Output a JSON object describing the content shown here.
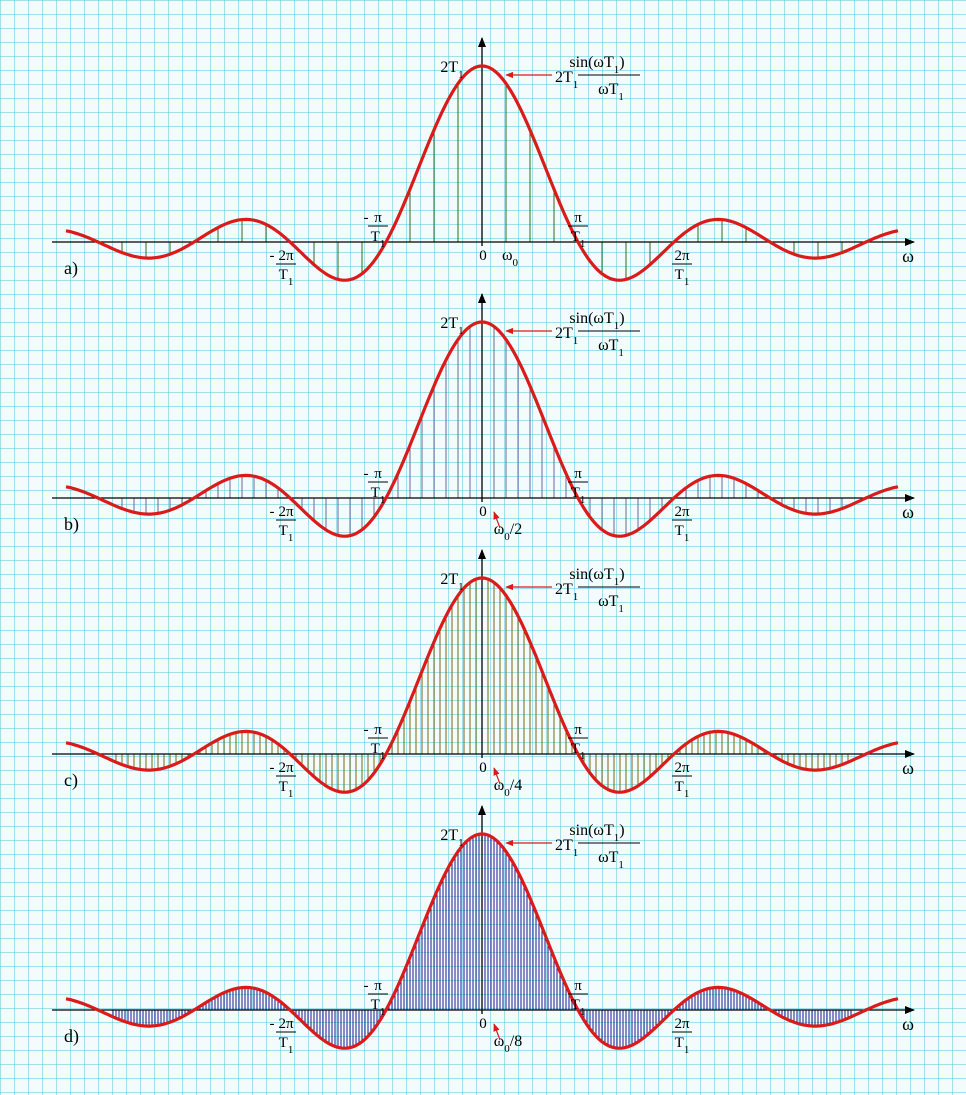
{
  "chart_data": {
    "type": "line",
    "function": "2T1·sin(ωT1)/(ωT1)",
    "axis_label": "ω",
    "x_range_in_units_of_pi_over_T1": [
      -3.85,
      3.85
    ],
    "peak_value": 2,
    "labels": {
      "peak": "2T",
      "curve_a": "2T",
      "curve_num": "sin(ωT",
      "curve_num_close": ")",
      "curve_den": "ωT",
      "sub1": "1",
      "sub0": "0",
      "pi": "π",
      "two_pi": "2π",
      "T": "T",
      "neg": "-",
      "origin": "0",
      "omega": "ω"
    },
    "panels": [
      {
        "id": "a",
        "label": "a)",
        "spacing_label": "",
        "samples_per_pi_over_T1": 4,
        "stem_color": "#2e6b1e"
      },
      {
        "id": "b",
        "label": "b)",
        "spacing_label": "/2",
        "samples_per_pi_over_T1": 8,
        "stem_color": "#6a6a9a"
      },
      {
        "id": "c",
        "label": "c)",
        "spacing_label": "/4",
        "samples_per_pi_over_T1": 16,
        "stem_color": "#7a6a10"
      },
      {
        "id": "d",
        "label": "d)",
        "spacing_label": "/8",
        "samples_per_pi_over_T1": 32,
        "stem_color": "#1a1a8c"
      }
    ],
    "curve_color": "#dd1a1a",
    "axis_color": "#000000"
  }
}
